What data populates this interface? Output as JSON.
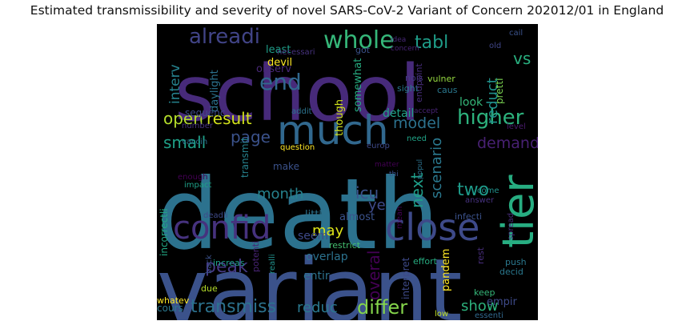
{
  "title": "Estimated transmissibility and severity of novel SARS-CoV-2 Variant of Concern 202012/01 in England",
  "cloud": {
    "background": "#000000",
    "colormap": "viridis",
    "words": [
      {
        "text": "school",
        "color": "#472a7a"
      },
      {
        "text": "death",
        "color": "#2c728e"
      },
      {
        "text": "variant",
        "color": "#3b528b"
      },
      {
        "text": "much",
        "color": "#31688e"
      },
      {
        "text": "tier",
        "color": "#27ad81"
      },
      {
        "text": "confid",
        "color": "#46327e"
      },
      {
        "text": "close",
        "color": "#3e4a89"
      },
      {
        "text": "alreadi",
        "color": "#414487"
      },
      {
        "text": "whole",
        "color": "#35b779"
      },
      {
        "text": "tabl",
        "color": "#1f9e89"
      },
      {
        "text": "end",
        "color": "#31688e"
      },
      {
        "text": "vs",
        "color": "#29af7f"
      },
      {
        "text": "higher",
        "color": "#2db27d"
      },
      {
        "text": "open",
        "color": "#b5de2b"
      },
      {
        "text": "result",
        "color": "#d2e21b"
      },
      {
        "text": "page",
        "color": "#3b528b"
      },
      {
        "text": "model",
        "color": "#2c728e"
      },
      {
        "text": "demand",
        "color": "#482173"
      },
      {
        "text": "small",
        "color": "#1fa188"
      },
      {
        "text": "month",
        "color": "#26828e"
      },
      {
        "text": "icu",
        "color": "#3b528b"
      },
      {
        "text": "next",
        "color": "#1f9e89"
      },
      {
        "text": "scenario",
        "color": "#2a788e"
      },
      {
        "text": "two",
        "color": "#1e9b8a"
      },
      {
        "text": "ye",
        "color": "#3e4a89"
      },
      {
        "text": "may",
        "color": "#dde318"
      },
      {
        "text": "overal",
        "color": "#440154"
      },
      {
        "text": "peak",
        "color": "#443983"
      },
      {
        "text": "transmiss",
        "color": "#2c728e"
      },
      {
        "text": "reduc",
        "color": "#2a788e"
      },
      {
        "text": "differ",
        "color": "#84d44b"
      },
      {
        "text": "show",
        "color": "#2db27d"
      },
      {
        "text": "interv",
        "color": "#26828e"
      },
      {
        "text": "reduct",
        "color": "#21918c"
      },
      {
        "text": "least",
        "color": "#1f9e89"
      },
      {
        "text": "devil",
        "color": "#fde725"
      },
      {
        "text": "observ",
        "color": "#482878"
      },
      {
        "text": "daylight",
        "color": "#2c728e"
      },
      {
        "text": "though",
        "color": "#d0e11c"
      },
      {
        "text": "somewhat",
        "color": "#27ad81"
      },
      {
        "text": "detail",
        "color": "#20a386"
      },
      {
        "text": "pretti",
        "color": "#7ad151"
      },
      {
        "text": "vulner",
        "color": "#95d840"
      },
      {
        "text": "caus",
        "color": "#2a788e"
      },
      {
        "text": "sight",
        "color": "#2a788e"
      },
      {
        "text": "nois",
        "color": "#443983"
      },
      {
        "text": "endpoint",
        "color": "#472d7b"
      },
      {
        "text": "necessari",
        "color": "#46327e"
      },
      {
        "text": "got",
        "color": "#3b528b"
      },
      {
        "text": "concern",
        "color": "#482475"
      },
      {
        "text": "idea",
        "color": "#482878"
      },
      {
        "text": "old",
        "color": "#404688"
      },
      {
        "text": "look",
        "color": "#35b779"
      },
      {
        "text": "cail",
        "color": "#3b528b"
      },
      {
        "text": "sequenc",
        "color": "#3e4a89"
      },
      {
        "text": "addit",
        "color": "#2c728e"
      },
      {
        "text": "number",
        "color": "#46327e"
      },
      {
        "text": "vaccin",
        "color": "#2c728e"
      },
      {
        "text": "question",
        "color": "#fde725"
      },
      {
        "text": "europ",
        "color": "#3e4a89"
      },
      {
        "text": "need",
        "color": "#20a386"
      },
      {
        "text": "level",
        "color": "#481b6d"
      },
      {
        "text": "accept",
        "color": "#482475"
      },
      {
        "text": "matter",
        "color": "#440154"
      },
      {
        "text": "thi",
        "color": "#3b528b"
      },
      {
        "text": "popul",
        "color": "#2c728e"
      },
      {
        "text": "come",
        "color": "#21918c"
      },
      {
        "text": "answer",
        "color": "#46327e"
      },
      {
        "text": "enough",
        "color": "#440154"
      },
      {
        "text": "impact",
        "color": "#1fa188"
      },
      {
        "text": "transmit",
        "color": "#26828e"
      },
      {
        "text": "make",
        "color": "#3b528b"
      },
      {
        "text": "incorrectli",
        "color": "#22a884"
      },
      {
        "text": "deadli",
        "color": "#3e4a89"
      },
      {
        "text": "littl",
        "color": "#2c728e"
      },
      {
        "text": "almost",
        "color": "#3b528b"
      },
      {
        "text": "mean",
        "color": "#440154"
      },
      {
        "text": "infecti",
        "color": "#3b528b"
      },
      {
        "text": "spread",
        "color": "#472d7b"
      },
      {
        "text": "seem",
        "color": "#3e4a89"
      },
      {
        "text": "restrict",
        "color": "#44bf70"
      },
      {
        "text": "back",
        "color": "#3b528b"
      },
      {
        "text": "increas",
        "color": "#1f9e89"
      },
      {
        "text": "potenti",
        "color": "#482475"
      },
      {
        "text": "realli",
        "color": "#21918c"
      },
      {
        "text": "overlap",
        "color": "#2c728e"
      },
      {
        "text": "interpret",
        "color": "#3e4a89"
      },
      {
        "text": "effort",
        "color": "#27ad81"
      },
      {
        "text": "rest",
        "color": "#472d7b"
      },
      {
        "text": "push",
        "color": "#2a788e"
      },
      {
        "text": "decid",
        "color": "#2a788e"
      },
      {
        "text": "pandem",
        "color": "#fde725"
      },
      {
        "text": "keep",
        "color": "#35b779"
      },
      {
        "text": "entir",
        "color": "#2c728e"
      },
      {
        "text": "due",
        "color": "#b5de2b"
      },
      {
        "text": "whatev",
        "color": "#fde725"
      },
      {
        "text": "cours",
        "color": "#2a788e"
      },
      {
        "text": "empir",
        "color": "#3e4a89"
      },
      {
        "text": "low",
        "color": "#bddf26"
      },
      {
        "text": "essenti",
        "color": "#31688e"
      }
    ]
  }
}
